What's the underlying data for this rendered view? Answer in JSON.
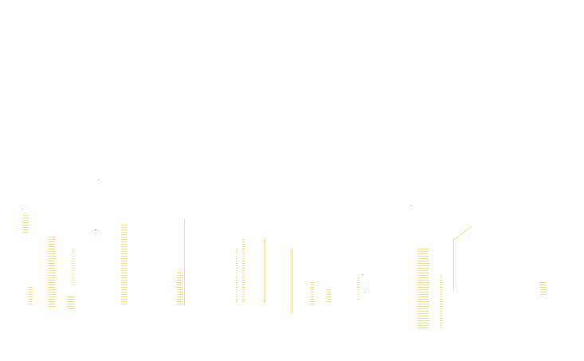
{
  "colors": {
    "background": "#ffffff",
    "stripe": "#f3de84",
    "stripe_light": "#f7e9a8",
    "speck_red": "#e0684a",
    "speck_blue": "#6a86b8",
    "speck_gray": "#9aa0a6"
  }
}
